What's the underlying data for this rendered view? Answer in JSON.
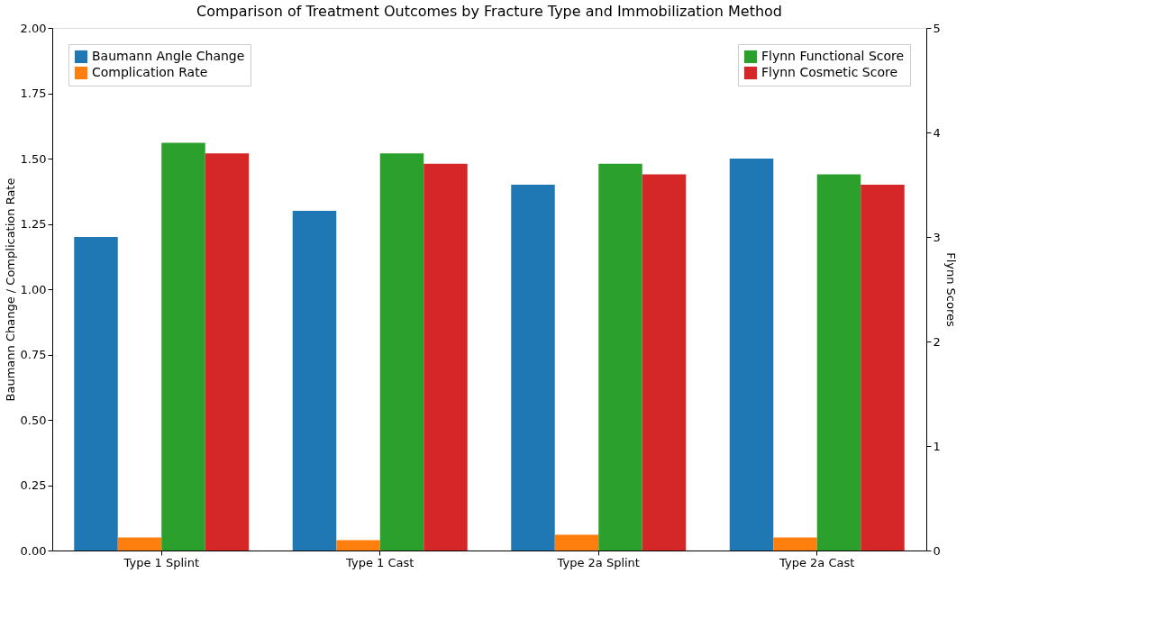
{
  "chart_data": {
    "type": "bar",
    "title": "Comparison of Treatment Outcomes by Fracture Type and Immobilization Method",
    "ylabel": "Baumann Change / Complication Rate",
    "y2label": "Flynn Scores",
    "categories": [
      "Type 1 Splint",
      "Type 1 Cast",
      "Type 2a Splint",
      "Type 2a Cast"
    ],
    "series": [
      {
        "name": "Baumann Angle Change",
        "color": "#1f77b4",
        "values": [
          1.2,
          1.3,
          1.4,
          1.5
        ]
      },
      {
        "name": "Complication Rate",
        "color": "#ff7f0e",
        "values": [
          0.05,
          0.04,
          0.06,
          0.05
        ]
      },
      {
        "name": "Flynn Functional Score",
        "color": "#2ca02c",
        "values": [
          3.9,
          3.8,
          3.7,
          3.6
        ],
        "axis": "y2"
      },
      {
        "name": "Flynn Cosmetic Score",
        "color": "#d62728",
        "values": [
          3.8,
          3.7,
          3.6,
          3.5
        ],
        "axis": "y2"
      }
    ],
    "ylim": [
      0,
      2
    ],
    "yticks": [
      {
        "value": 0,
        "label": "0.00"
      },
      {
        "value": 0.25,
        "label": "0.25"
      },
      {
        "value": 0.5,
        "label": "0.50"
      },
      {
        "value": 0.75,
        "label": "0.75"
      },
      {
        "value": 1,
        "label": "1.00"
      },
      {
        "value": 1.25,
        "label": "1.25"
      },
      {
        "value": 1.5,
        "label": "1.50"
      },
      {
        "value": 1.75,
        "label": "1.75"
      },
      {
        "value": 2,
        "label": "2.00"
      }
    ],
    "y2lim": [
      0,
      5
    ],
    "y2ticks": [
      0,
      1,
      2,
      3,
      4,
      5
    ],
    "legend": "top left",
    "grid": false
  }
}
